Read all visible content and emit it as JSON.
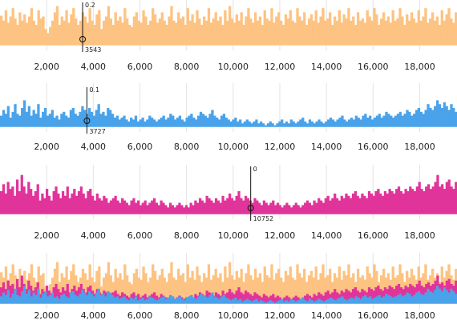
{
  "chart_data": [
    {
      "type": "bar",
      "id": "orange",
      "color": "#fdc382",
      "x_range": [
        0,
        19600
      ],
      "ticks": [
        "2,000",
        "4,000",
        "6,000",
        "8,000",
        "10,000",
        "12,000",
        "14,000",
        "16,000",
        "18,000"
      ],
      "tick_values": [
        2000,
        4000,
        6000,
        8000,
        10000,
        12000,
        14000,
        16000,
        18000
      ],
      "marker": {
        "x": 3543,
        "x_label": "3543",
        "y_label": "0.2"
      },
      "values": [
        0.72,
        0.6,
        0.85,
        0.55,
        0.7,
        0.9,
        0.65,
        0.5,
        0.8,
        0.6,
        0.75,
        0.55,
        0.7,
        0.9,
        0.6,
        0.5,
        0.85,
        0.65,
        0.7,
        0.4,
        0.3,
        0.45,
        0.6,
        0.8,
        0.95,
        0.5,
        0.7,
        0.6,
        0.85,
        0.55,
        0.75,
        0.9,
        0.65,
        0.5,
        0.6,
        0.8,
        0.7,
        0.55,
        0.9,
        0.6,
        0.5,
        0.75,
        0.85,
        0.4,
        0.6,
        0.7,
        0.95,
        0.65,
        0.5,
        0.8,
        0.6,
        0.7,
        0.55,
        0.9,
        0.65,
        0.5,
        0.45,
        0.7,
        0.8,
        0.6,
        0.55,
        0.85,
        0.7,
        0.5,
        0.6,
        0.9,
        0.75,
        0.55,
        0.65,
        0.8,
        0.6,
        0.5,
        0.7,
        0.95,
        0.6,
        0.55,
        0.8,
        0.65,
        0.7,
        0.5,
        0.9,
        0.6,
        0.75,
        0.55,
        0.85,
        0.65,
        0.5,
        0.7,
        0.6,
        0.9,
        0.55,
        0.65,
        0.8,
        0.6,
        0.7,
        0.5,
        0.85,
        0.6,
        0.95,
        0.65,
        0.55,
        0.75,
        0.6,
        0.8,
        0.5,
        0.7,
        0.9,
        0.65,
        0.55,
        0.8,
        0.6,
        0.7,
        0.5,
        0.85,
        0.65,
        0.6,
        0.9,
        0.55,
        0.7,
        0.8,
        0.6,
        0.5,
        0.75,
        0.65,
        0.85,
        0.6,
        0.55,
        0.9,
        0.7,
        0.6,
        0.8,
        0.5,
        0.65,
        0.75,
        0.6,
        0.85,
        0.55,
        0.7,
        0.9,
        0.6,
        0.65,
        0.8,
        0.5,
        0.7,
        0.6,
        0.85,
        0.55,
        0.75,
        0.65,
        0.9,
        0.6,
        0.7,
        0.5,
        0.8,
        0.6,
        0.65,
        0.55,
        0.85,
        0.7,
        0.6,
        0.9,
        0.75,
        0.5,
        0.65,
        0.8,
        0.6,
        0.7,
        0.55,
        0.85,
        0.6,
        0.65,
        0.9,
        0.7,
        0.5,
        0.75,
        0.6,
        0.8,
        0.65,
        0.55,
        0.85,
        0.6,
        0.7,
        0.9,
        0.55,
        0.65,
        0.8,
        0.6,
        0.7,
        0.5,
        0.85,
        0.6,
        0.75,
        0.9,
        0.65,
        0.55,
        0.8
      ]
    },
    {
      "type": "bar",
      "id": "blue",
      "color": "#4aa3ea",
      "x_range": [
        0,
        19600
      ],
      "ticks": [
        "2,000",
        "4,000",
        "6,000",
        "8,000",
        "10,000",
        "12,000",
        "14,000",
        "16,000",
        "18,000"
      ],
      "tick_values": [
        2000,
        4000,
        6000,
        8000,
        10000,
        12000,
        14000,
        16000,
        18000
      ],
      "marker": {
        "x": 3727,
        "x_label": "3727",
        "y_label": "0.1"
      },
      "values": [
        0.3,
        0.45,
        0.35,
        0.55,
        0.25,
        0.4,
        0.6,
        0.35,
        0.3,
        0.5,
        0.7,
        0.4,
        0.55,
        0.3,
        0.45,
        0.35,
        0.6,
        0.25,
        0.4,
        0.5,
        0.3,
        0.35,
        0.45,
        0.25,
        0.3,
        0.2,
        0.35,
        0.4,
        0.3,
        0.25,
        0.45,
        0.5,
        0.35,
        0.3,
        0.4,
        0.55,
        0.45,
        0.35,
        0.5,
        0.4,
        0.3,
        0.45,
        0.6,
        0.35,
        0.4,
        0.3,
        0.5,
        0.45,
        0.35,
        0.25,
        0.3,
        0.2,
        0.25,
        0.3,
        0.2,
        0.15,
        0.25,
        0.2,
        0.3,
        0.15,
        0.2,
        0.25,
        0.15,
        0.2,
        0.3,
        0.25,
        0.2,
        0.15,
        0.2,
        0.25,
        0.3,
        0.2,
        0.25,
        0.35,
        0.3,
        0.2,
        0.25,
        0.3,
        0.2,
        0.15,
        0.25,
        0.3,
        0.35,
        0.25,
        0.2,
        0.3,
        0.4,
        0.35,
        0.3,
        0.25,
        0.35,
        0.45,
        0.3,
        0.25,
        0.2,
        0.3,
        0.35,
        0.25,
        0.2,
        0.15,
        0.2,
        0.25,
        0.15,
        0.2,
        0.1,
        0.15,
        0.2,
        0.15,
        0.1,
        0.15,
        0.2,
        0.1,
        0.15,
        0.1,
        0.05,
        0.1,
        0.15,
        0.1,
        0.05,
        0.1,
        0.15,
        0.2,
        0.1,
        0.15,
        0.1,
        0.2,
        0.15,
        0.1,
        0.15,
        0.2,
        0.25,
        0.15,
        0.1,
        0.2,
        0.15,
        0.1,
        0.15,
        0.2,
        0.15,
        0.1,
        0.15,
        0.2,
        0.25,
        0.2,
        0.15,
        0.2,
        0.25,
        0.3,
        0.2,
        0.15,
        0.2,
        0.25,
        0.2,
        0.3,
        0.25,
        0.2,
        0.3,
        0.35,
        0.25,
        0.3,
        0.2,
        0.25,
        0.3,
        0.35,
        0.25,
        0.3,
        0.4,
        0.35,
        0.3,
        0.25,
        0.3,
        0.35,
        0.4,
        0.3,
        0.35,
        0.45,
        0.4,
        0.3,
        0.35,
        0.45,
        0.5,
        0.4,
        0.35,
        0.45,
        0.6,
        0.5,
        0.45,
        0.55,
        0.7,
        0.6,
        0.5,
        0.65,
        0.55,
        0.45,
        0.6,
        0.5,
        0.4
      ]
    },
    {
      "type": "bar",
      "id": "magenta",
      "color": "#e1349a",
      "x_range": [
        0,
        19600
      ],
      "ticks": [
        "2,000",
        "4,000",
        "6,000",
        "8,000",
        "10,000",
        "12,000",
        "14,000",
        "16,000",
        "18,000"
      ],
      "tick_values": [
        2000,
        4000,
        6000,
        8000,
        10000,
        12000,
        14000,
        16000,
        18000
      ],
      "marker": {
        "x": 10752,
        "x_label": "10752",
        "y_label": "0"
      },
      "values": [
        0.5,
        0.65,
        0.45,
        0.7,
        0.55,
        0.6,
        0.4,
        0.75,
        0.5,
        0.85,
        0.6,
        0.45,
        0.7,
        0.55,
        0.4,
        0.5,
        0.65,
        0.3,
        0.45,
        0.35,
        0.55,
        0.4,
        0.3,
        0.5,
        0.6,
        0.45,
        0.35,
        0.5,
        0.4,
        0.6,
        0.35,
        0.45,
        0.55,
        0.4,
        0.5,
        0.6,
        0.45,
        0.35,
        0.5,
        0.55,
        0.4,
        0.3,
        0.45,
        0.35,
        0.3,
        0.4,
        0.35,
        0.25,
        0.3,
        0.35,
        0.4,
        0.3,
        0.25,
        0.35,
        0.3,
        0.25,
        0.2,
        0.3,
        0.35,
        0.25,
        0.3,
        0.2,
        0.25,
        0.3,
        0.2,
        0.25,
        0.3,
        0.35,
        0.25,
        0.2,
        0.3,
        0.25,
        0.2,
        0.15,
        0.25,
        0.2,
        0.15,
        0.2,
        0.25,
        0.2,
        0.15,
        0.2,
        0.15,
        0.25,
        0.2,
        0.3,
        0.25,
        0.35,
        0.3,
        0.25,
        0.4,
        0.35,
        0.3,
        0.25,
        0.35,
        0.3,
        0.25,
        0.4,
        0.3,
        0.35,
        0.45,
        0.35,
        0.3,
        0.4,
        0.5,
        0.35,
        0.3,
        0.4,
        0.35,
        0.3,
        0.25,
        0.35,
        0.3,
        0.25,
        0.2,
        0.3,
        0.25,
        0.2,
        0.25,
        0.3,
        0.2,
        0.25,
        0.2,
        0.15,
        0.2,
        0.25,
        0.2,
        0.15,
        0.2,
        0.25,
        0.2,
        0.15,
        0.2,
        0.25,
        0.3,
        0.25,
        0.2,
        0.3,
        0.25,
        0.35,
        0.3,
        0.25,
        0.35,
        0.4,
        0.3,
        0.35,
        0.45,
        0.35,
        0.3,
        0.4,
        0.35,
        0.45,
        0.4,
        0.35,
        0.45,
        0.5,
        0.4,
        0.35,
        0.45,
        0.4,
        0.35,
        0.5,
        0.45,
        0.4,
        0.5,
        0.55,
        0.45,
        0.4,
        0.5,
        0.45,
        0.55,
        0.5,
        0.45,
        0.55,
        0.6,
        0.5,
        0.45,
        0.55,
        0.5,
        0.6,
        0.55,
        0.5,
        0.6,
        0.7,
        0.55,
        0.5,
        0.6,
        0.65,
        0.55,
        0.6,
        0.7,
        0.85,
        0.6,
        0.65,
        0.55,
        0.7,
        0.75,
        0.6,
        0.55,
        0.7
      ]
    },
    {
      "type": "bar",
      "id": "combined",
      "overlay_of": [
        "orange",
        "magenta",
        "blue"
      ],
      "x_range": [
        0,
        19600
      ],
      "ticks": [
        "2,000",
        "4,000",
        "6,000",
        "8,000",
        "10,000",
        "12,000",
        "14,000",
        "16,000",
        "18,000"
      ],
      "tick_values": [
        2000,
        4000,
        6000,
        8000,
        10000,
        12000,
        14000,
        16000,
        18000
      ]
    }
  ]
}
